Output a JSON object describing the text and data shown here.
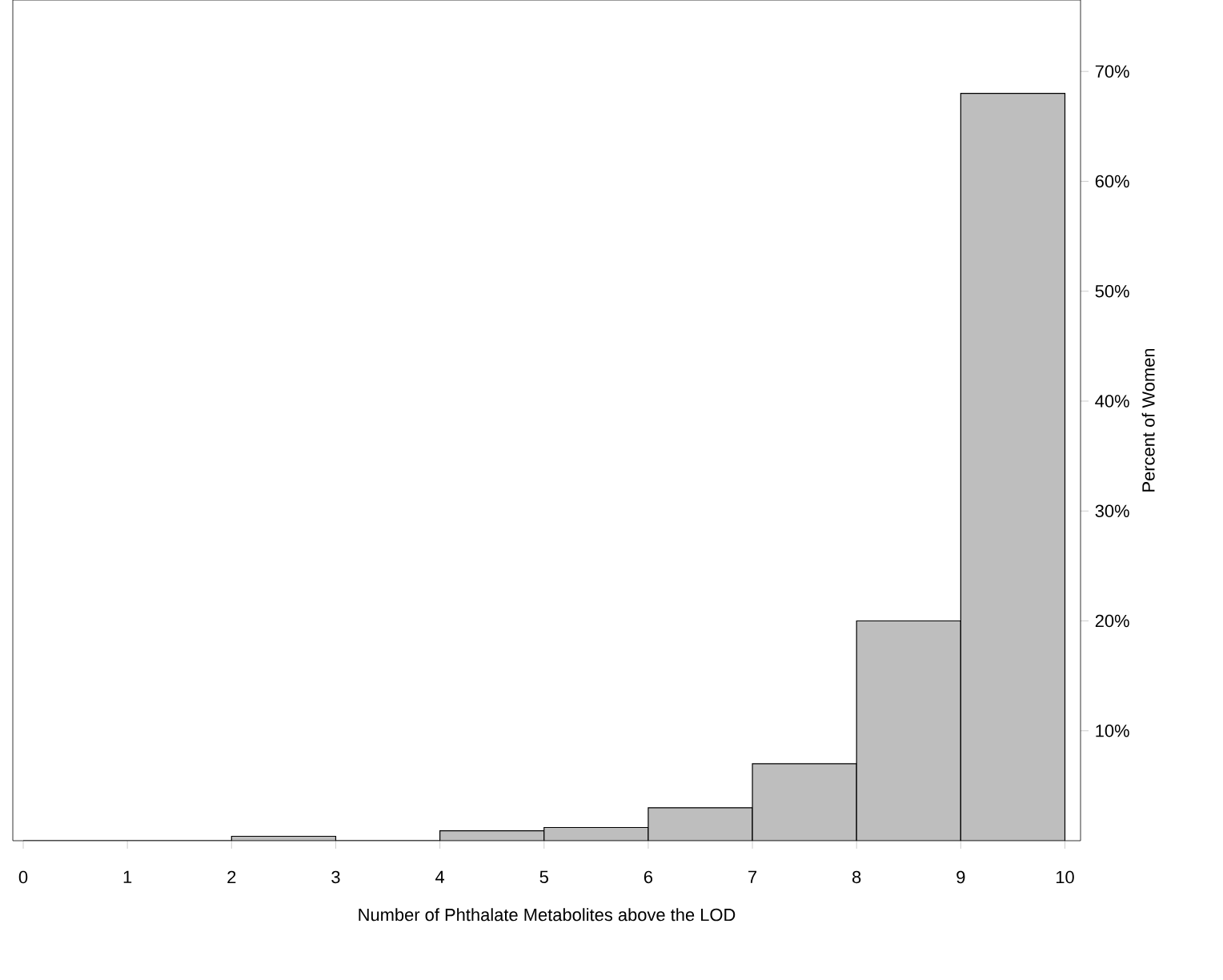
{
  "chart_data": {
    "type": "histogram",
    "xlabel": "Number of Phthalate Metabolites above the LOD",
    "ylabel": "Percent of Women",
    "bins": [
      0,
      1,
      2,
      3,
      4,
      5,
      6,
      7,
      8,
      9,
      10
    ],
    "values": [
      0,
      0,
      0.4,
      0,
      0.9,
      1.2,
      3,
      7,
      20,
      68
    ],
    "color": "#bebebe",
    "xlim": [
      -0.1,
      10.15
    ],
    "ylim": [
      0,
      76.5
    ],
    "xticks": [
      0,
      1,
      2,
      3,
      4,
      5,
      6,
      7,
      8,
      9,
      10
    ],
    "yticks": [
      {
        "value": 10,
        "label": "10%"
      },
      {
        "value": 20,
        "label": "20%"
      },
      {
        "value": 30,
        "label": "30%"
      },
      {
        "value": 40,
        "label": "40%"
      },
      {
        "value": 50,
        "label": "50%"
      },
      {
        "value": 60,
        "label": "60%"
      },
      {
        "value": 70,
        "label": "70%"
      }
    ],
    "marker": "none"
  }
}
